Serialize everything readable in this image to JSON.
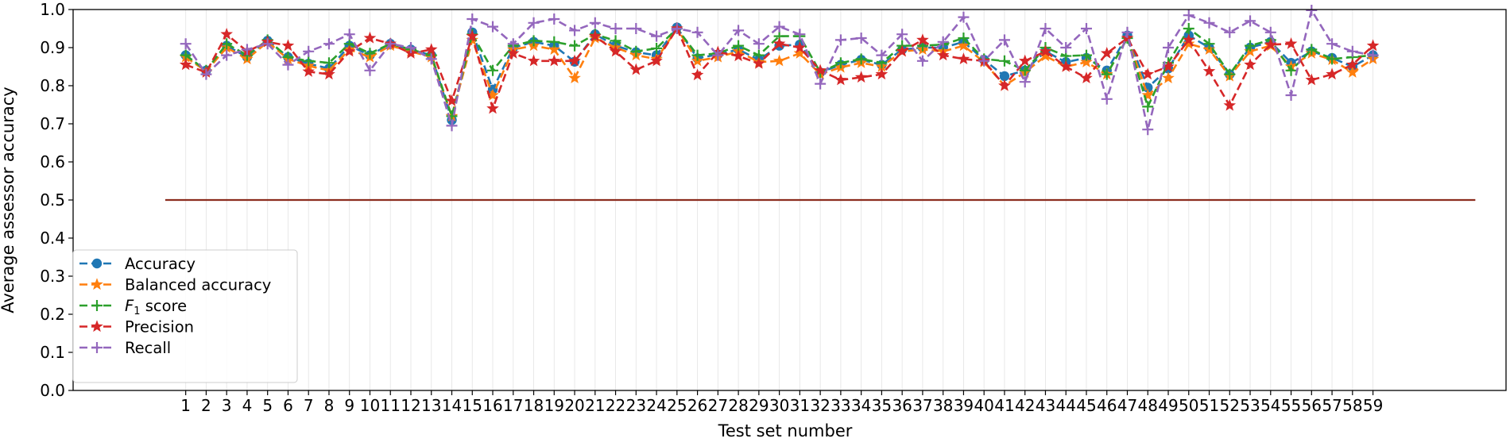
{
  "chart_data": {
    "type": "line",
    "xlabel": "Test set number",
    "ylabel": "Average assessor accuracy",
    "ylim": [
      0.0,
      1.0
    ],
    "yticks": [
      "0.0",
      "0.1",
      "0.2",
      "0.3",
      "0.4",
      "0.5",
      "0.6",
      "0.7",
      "0.8",
      "0.9",
      "1.0"
    ],
    "x": [
      1,
      2,
      3,
      4,
      5,
      6,
      7,
      8,
      9,
      10,
      11,
      12,
      13,
      14,
      15,
      16,
      17,
      18,
      19,
      20,
      21,
      22,
      23,
      24,
      25,
      26,
      27,
      28,
      29,
      30,
      31,
      32,
      33,
      34,
      35,
      36,
      37,
      38,
      39,
      40,
      41,
      42,
      43,
      44,
      45,
      46,
      47,
      48,
      49,
      50,
      51,
      52,
      53,
      54,
      55,
      56,
      57,
      58,
      59
    ],
    "xlim": [
      -4.5,
      65.5
    ],
    "grid": "vertical",
    "legend_position": "lower-left",
    "reference_line": {
      "value": 0.5,
      "x_range": [
        0.0,
        64.0
      ],
      "color": "#8c2d1e"
    },
    "series": [
      {
        "name": "Accuracy",
        "color": "#1f77b4",
        "marker": "circle",
        "values": [
          0.88,
          0.84,
          0.905,
          0.875,
          0.918,
          0.875,
          0.858,
          0.845,
          0.905,
          0.88,
          0.91,
          0.895,
          0.88,
          0.71,
          0.94,
          0.79,
          0.9,
          0.915,
          0.905,
          0.863,
          0.935,
          0.905,
          0.888,
          0.88,
          0.953,
          0.872,
          0.882,
          0.895,
          0.868,
          0.905,
          0.908,
          0.835,
          0.855,
          0.868,
          0.855,
          0.895,
          0.9,
          0.9,
          0.915,
          0.868,
          0.825,
          0.84,
          0.89,
          0.862,
          0.873,
          0.84,
          0.932,
          0.795,
          0.845,
          0.932,
          0.9,
          0.83,
          0.9,
          0.915,
          0.86,
          0.89,
          0.873,
          0.85,
          0.88
        ]
      },
      {
        "name": "Balanced accuracy",
        "color": "#ff7f0e",
        "marker": "star",
        "values": [
          0.875,
          0.838,
          0.9,
          0.87,
          0.915,
          0.87,
          0.852,
          0.84,
          0.895,
          0.875,
          0.905,
          0.89,
          0.875,
          0.72,
          0.92,
          0.775,
          0.895,
          0.905,
          0.895,
          0.82,
          0.925,
          0.9,
          0.88,
          0.87,
          0.95,
          0.865,
          0.875,
          0.89,
          0.862,
          0.865,
          0.885,
          0.83,
          0.848,
          0.86,
          0.85,
          0.89,
          0.895,
          0.89,
          0.905,
          0.862,
          0.8,
          0.835,
          0.878,
          0.85,
          0.862,
          0.83,
          0.925,
          0.775,
          0.82,
          0.91,
          0.895,
          0.825,
          0.89,
          0.905,
          0.85,
          0.885,
          0.868,
          0.835,
          0.87
        ]
      },
      {
        "name": "F1 score",
        "color": "#2ca02c",
        "marker": "plus",
        "values": [
          0.88,
          0.84,
          0.91,
          0.88,
          0.92,
          0.875,
          0.865,
          0.86,
          0.91,
          0.885,
          0.91,
          0.895,
          0.88,
          0.72,
          0.935,
          0.84,
          0.905,
          0.918,
          0.915,
          0.905,
          0.935,
          0.918,
          0.89,
          0.898,
          0.95,
          0.88,
          0.885,
          0.905,
          0.88,
          0.93,
          0.93,
          0.835,
          0.86,
          0.87,
          0.86,
          0.905,
          0.905,
          0.908,
          0.925,
          0.87,
          0.865,
          0.84,
          0.9,
          0.878,
          0.88,
          0.83,
          0.925,
          0.745,
          0.86,
          0.95,
          0.91,
          0.83,
          0.905,
          0.92,
          0.84,
          0.895,
          0.87,
          0.875,
          0.88
        ]
      },
      {
        "name": "Precision",
        "color": "#d62728",
        "marker": "star",
        "values": [
          0.855,
          0.835,
          0.935,
          0.89,
          0.915,
          0.905,
          0.837,
          0.83,
          0.89,
          0.925,
          0.91,
          0.885,
          0.895,
          0.76,
          0.93,
          0.74,
          0.885,
          0.865,
          0.865,
          0.865,
          0.93,
          0.89,
          0.842,
          0.865,
          0.95,
          0.828,
          0.888,
          0.878,
          0.858,
          0.91,
          0.9,
          0.84,
          0.815,
          0.822,
          0.83,
          0.89,
          0.92,
          0.88,
          0.87,
          0.865,
          0.8,
          0.865,
          0.89,
          0.85,
          0.82,
          0.885,
          0.925,
          0.83,
          0.85,
          0.92,
          0.838,
          0.748,
          0.855,
          0.908,
          0.91,
          0.815,
          0.83,
          0.855,
          0.905
        ]
      },
      {
        "name": "Recall",
        "color": "#9467bd",
        "marker": "plus",
        "values": [
          0.91,
          0.83,
          0.88,
          0.895,
          0.91,
          0.855,
          0.89,
          0.91,
          0.935,
          0.84,
          0.91,
          0.9,
          0.87,
          0.695,
          0.975,
          0.955,
          0.91,
          0.965,
          0.975,
          0.945,
          0.965,
          0.95,
          0.95,
          0.93,
          0.95,
          0.94,
          0.88,
          0.945,
          0.91,
          0.955,
          0.935,
          0.805,
          0.92,
          0.925,
          0.88,
          0.935,
          0.865,
          0.915,
          0.98,
          0.865,
          0.92,
          0.81,
          0.95,
          0.9,
          0.95,
          0.765,
          0.94,
          0.685,
          0.9,
          0.985,
          0.965,
          0.94,
          0.97,
          0.94,
          0.775,
          0.998,
          0.91,
          0.89,
          0.88
        ]
      }
    ]
  }
}
